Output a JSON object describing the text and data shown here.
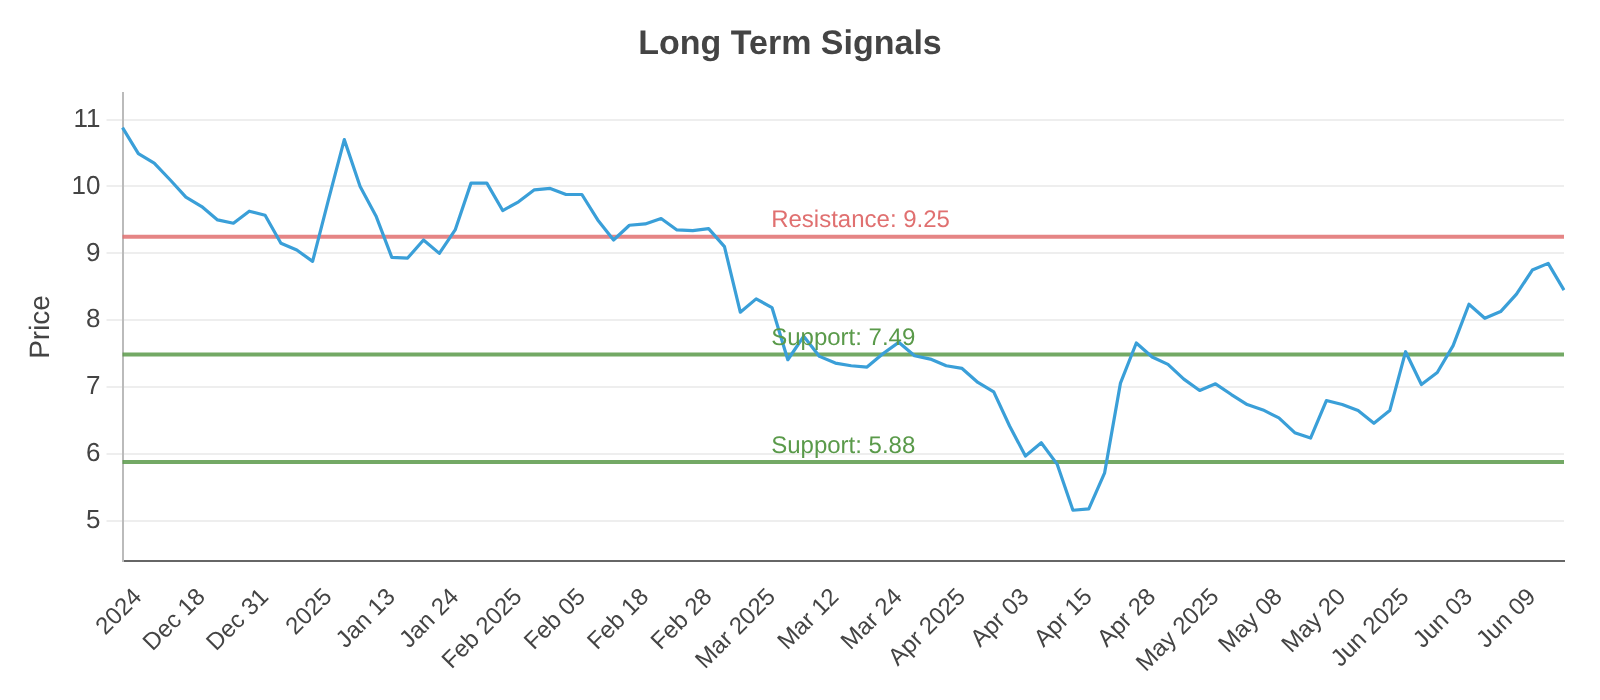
{
  "chart_data": {
    "type": "line",
    "title": "Long Term Signals",
    "ylabel": "Price",
    "categories": [
      null,
      "2024",
      null,
      null,
      null,
      "Dec 18",
      null,
      null,
      null,
      "Dec 31",
      null,
      null,
      null,
      "2025",
      null,
      null,
      null,
      "Jan 13",
      null,
      null,
      null,
      "Jan 24",
      null,
      null,
      null,
      "Feb 2025",
      null,
      null,
      null,
      "Feb 05",
      null,
      null,
      null,
      "Feb 18",
      null,
      null,
      null,
      "Feb 28",
      null,
      null,
      null,
      "Mar 2025",
      null,
      null,
      null,
      "Mar 12",
      null,
      null,
      null,
      "Mar 24",
      null,
      null,
      null,
      "Apr 2025",
      null,
      null,
      null,
      "Apr 03",
      null,
      null,
      null,
      "Apr 15",
      null,
      null,
      null,
      "Apr 28",
      null,
      null,
      null,
      "May 2025",
      null,
      null,
      null,
      "May 08",
      null,
      null,
      null,
      "May 20",
      null,
      null,
      null,
      "Jun 2025",
      null,
      null,
      null,
      "Jun 03",
      null,
      null,
      null,
      "Jun 09",
      null,
      null
    ],
    "series": [
      {
        "color": "#3a9fd8",
        "values": [
          10.88,
          10.49,
          10.35,
          10.1,
          9.84,
          9.7,
          9.5,
          9.45,
          9.63,
          9.57,
          9.15,
          9.05,
          8.88,
          9.8,
          10.7,
          10.0,
          9.56,
          8.94,
          8.93,
          9.2,
          9.0,
          9.35,
          10.05,
          10.05,
          9.64,
          9.77,
          9.95,
          9.97,
          9.88,
          9.88,
          9.5,
          9.2,
          9.42,
          9.44,
          9.52,
          9.35,
          9.34,
          9.37,
          9.1,
          8.12,
          8.32,
          8.19,
          7.41,
          7.76,
          7.46,
          7.36,
          7.32,
          7.3,
          7.5,
          7.67,
          7.47,
          7.42,
          7.32,
          7.28,
          7.07,
          6.93,
          6.42,
          5.97,
          6.17,
          5.85,
          5.16,
          5.18,
          5.72,
          7.06,
          7.66,
          7.45,
          7.34,
          7.12,
          6.95,
          7.05,
          6.89,
          6.74,
          6.66,
          6.54,
          6.32,
          6.24,
          6.8,
          6.74,
          6.65,
          6.46,
          6.65,
          7.53,
          7.04,
          7.22,
          7.62,
          8.24,
          8.03,
          8.13,
          8.39,
          8.75,
          8.85,
          8.45
        ]
      }
    ],
    "ylim": [
      4.4,
      11.4
    ],
    "yticks": [
      5,
      6,
      7,
      8,
      9,
      10,
      11
    ],
    "grid": "y",
    "legend": false,
    "marker": "none",
    "line_style": "solid",
    "ref_lines": [
      {
        "axis": "y",
        "value": 9.25,
        "label": "Resistance: 9.25",
        "color": "#e07070"
      },
      {
        "axis": "y",
        "value": 7.49,
        "label": "Support: 7.49",
        "color": "#5a9a4a"
      },
      {
        "axis": "y",
        "value": 5.88,
        "label": "Support: 5.88",
        "color": "#5a9a4a"
      }
    ]
  }
}
